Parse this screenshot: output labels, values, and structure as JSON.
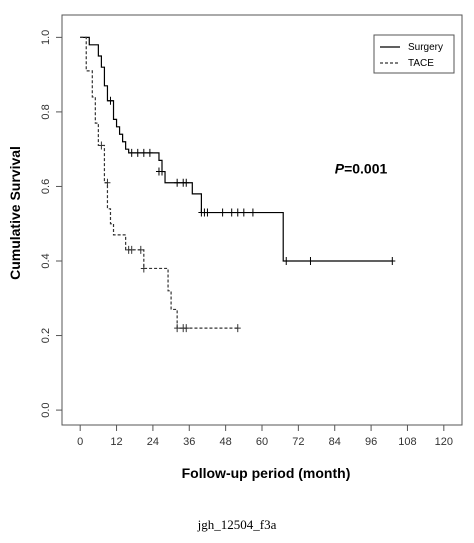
{
  "chart_data": {
    "type": "line",
    "title": "",
    "xlabel": "Follow-up period (month)",
    "ylabel": "Cumulative Survival",
    "xlim": [
      -6,
      126
    ],
    "ylim": [
      -0.04,
      1.06
    ],
    "xticks": [
      0,
      12,
      24,
      36,
      48,
      60,
      72,
      84,
      96,
      108,
      120
    ],
    "yticks": [
      0.0,
      0.2,
      0.4,
      0.6,
      0.8,
      1.0
    ],
    "ytick_labels": [
      "0.0",
      "0.2",
      "0.4",
      "0.6",
      "0.8",
      "1.0"
    ],
    "grid": false,
    "legend_position": "top-right",
    "annotation": {
      "italic": "P",
      "rest": "=0.001",
      "x": 84,
      "y": 0.635
    },
    "series": [
      {
        "name": "Surgery",
        "style": "solid",
        "color": "#000000",
        "steps": [
          [
            0,
            1.0
          ],
          [
            3,
            0.98
          ],
          [
            6,
            0.95
          ],
          [
            7,
            0.92
          ],
          [
            8,
            0.87
          ],
          [
            9,
            0.83
          ],
          [
            11,
            0.78
          ],
          [
            12,
            0.76
          ],
          [
            13,
            0.74
          ],
          [
            14,
            0.72
          ],
          [
            15,
            0.7
          ],
          [
            16,
            0.69
          ],
          [
            26,
            0.67
          ],
          [
            27,
            0.64
          ],
          [
            28,
            0.61
          ],
          [
            37,
            0.58
          ],
          [
            40,
            0.53
          ],
          [
            67,
            0.4
          ],
          [
            103,
            0.4
          ]
        ],
        "censored": [
          [
            10,
            0.83
          ],
          [
            17,
            0.69
          ],
          [
            19,
            0.69
          ],
          [
            21,
            0.69
          ],
          [
            23,
            0.69
          ],
          [
            26,
            0.64
          ],
          [
            27,
            0.64
          ],
          [
            32,
            0.61
          ],
          [
            34,
            0.61
          ],
          [
            35,
            0.61
          ],
          [
            40,
            0.53
          ],
          [
            41,
            0.53
          ],
          [
            42,
            0.53
          ],
          [
            47,
            0.53
          ],
          [
            50,
            0.53
          ],
          [
            52,
            0.53
          ],
          [
            54,
            0.53
          ],
          [
            57,
            0.53
          ],
          [
            68,
            0.4
          ],
          [
            76,
            0.4
          ],
          [
            103,
            0.4
          ]
        ]
      },
      {
        "name": "TACE",
        "style": "dashed",
        "color": "#333333",
        "steps": [
          [
            0,
            1.0
          ],
          [
            2,
            0.91
          ],
          [
            4,
            0.84
          ],
          [
            5,
            0.77
          ],
          [
            6,
            0.71
          ],
          [
            8,
            0.61
          ],
          [
            9,
            0.54
          ],
          [
            10,
            0.5
          ],
          [
            11,
            0.47
          ],
          [
            15,
            0.43
          ],
          [
            21,
            0.38
          ],
          [
            29,
            0.32
          ],
          [
            30,
            0.27
          ],
          [
            32,
            0.22
          ],
          [
            52,
            0.22
          ]
        ],
        "censored": [
          [
            7,
            0.71
          ],
          [
            9,
            0.61
          ],
          [
            16,
            0.43
          ],
          [
            17,
            0.43
          ],
          [
            20,
            0.43
          ],
          [
            21,
            0.38
          ],
          [
            32,
            0.22
          ],
          [
            34,
            0.22
          ],
          [
            35,
            0.22
          ],
          [
            52,
            0.22
          ]
        ]
      }
    ]
  },
  "caption": "jgh_12504_f3a"
}
